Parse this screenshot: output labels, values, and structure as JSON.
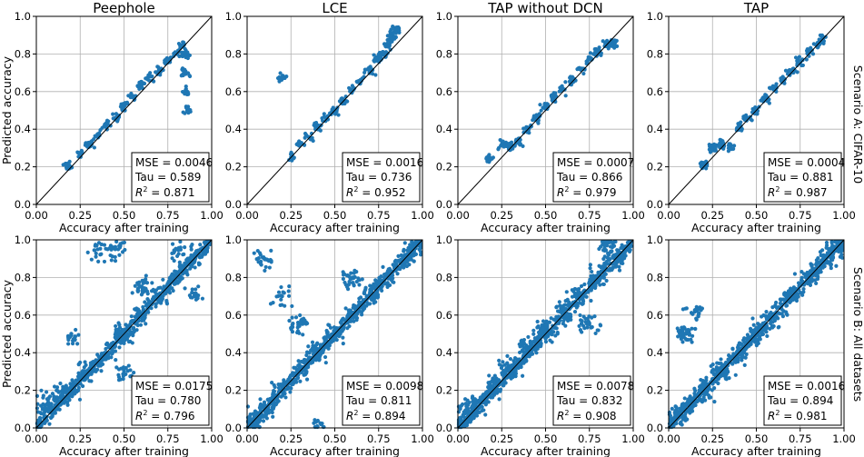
{
  "figure": {
    "row_labels": [
      "Scenario A: CIFAR-10",
      "Scenario B: All datasets"
    ]
  },
  "chart_data": [
    {
      "type": "scatter",
      "title": "Peephole",
      "xlabel": "Accuracy after training",
      "ylabel": "Predicted accuracy",
      "xlim": [
        0,
        1
      ],
      "ylim": [
        0,
        1
      ],
      "xticks": [
        "0.00",
        "0.25",
        "0.50",
        "0.75",
        "1.00"
      ],
      "yticks": [
        "0.0",
        "0.2",
        "0.4",
        "0.6",
        "0.8",
        "1.0"
      ],
      "grid": true,
      "legend": "bottom-right",
      "diagonal": true,
      "color": "#1f77b4",
      "mse": "MSE = 0.0046",
      "tau": "Tau = 0.589",
      "r2": "0.871",
      "r2_prefix": "R",
      "points": [
        [
          0.18,
          0.2
        ],
        [
          0.25,
          0.27
        ],
        [
          0.3,
          0.32
        ],
        [
          0.35,
          0.37
        ],
        [
          0.4,
          0.42
        ],
        [
          0.45,
          0.46
        ],
        [
          0.5,
          0.52
        ],
        [
          0.55,
          0.57
        ],
        [
          0.6,
          0.63
        ],
        [
          0.65,
          0.68
        ],
        [
          0.7,
          0.72
        ],
        [
          0.75,
          0.76
        ],
        [
          0.8,
          0.8
        ],
        [
          0.83,
          0.84
        ],
        [
          0.85,
          0.7
        ],
        [
          0.86,
          0.6
        ],
        [
          0.86,
          0.5
        ],
        [
          0.85,
          0.79
        ]
      ]
    },
    {
      "type": "scatter",
      "title": "LCE",
      "xlabel": "Accuracy after training",
      "ylabel": "",
      "xlim": [
        0,
        1
      ],
      "ylim": [
        0,
        1
      ],
      "xticks": [
        "0.00",
        "0.25",
        "0.50",
        "0.75",
        "1.00"
      ],
      "yticks": [
        "0.0",
        "0.2",
        "0.4",
        "0.6",
        "0.8",
        "1.0"
      ],
      "grid": true,
      "legend": "bottom-right",
      "diagonal": true,
      "color": "#1f77b4",
      "mse": "MSE = 0.0016",
      "tau": "Tau = 0.736",
      "r2": "0.952",
      "r2_prefix": "R",
      "points": [
        [
          0.2,
          0.67
        ],
        [
          0.25,
          0.25
        ],
        [
          0.3,
          0.32
        ],
        [
          0.35,
          0.36
        ],
        [
          0.4,
          0.41
        ],
        [
          0.45,
          0.46
        ],
        [
          0.5,
          0.5
        ],
        [
          0.55,
          0.55
        ],
        [
          0.6,
          0.61
        ],
        [
          0.65,
          0.66
        ],
        [
          0.7,
          0.71
        ],
        [
          0.75,
          0.78
        ],
        [
          0.8,
          0.85
        ],
        [
          0.83,
          0.9
        ],
        [
          0.85,
          0.93
        ],
        [
          0.82,
          0.88
        ],
        [
          0.78,
          0.8
        ]
      ]
    },
    {
      "type": "scatter",
      "title": "TAP without DCN",
      "xlabel": "Accuracy after training",
      "ylabel": "",
      "xlim": [
        0,
        1
      ],
      "ylim": [
        0,
        1
      ],
      "xticks": [
        "0.00",
        "0.25",
        "0.50",
        "0.75",
        "1.00"
      ],
      "yticks": [
        "0.0",
        "0.2",
        "0.4",
        "0.6",
        "0.8",
        "1.0"
      ],
      "grid": true,
      "legend": "bottom-right",
      "diagonal": true,
      "color": "#1f77b4",
      "mse": "MSE = 0.0007",
      "tau": "Tau = 0.866",
      "r2": "0.979",
      "r2_prefix": "R",
      "points": [
        [
          0.18,
          0.24
        ],
        [
          0.25,
          0.32
        ],
        [
          0.3,
          0.31
        ],
        [
          0.35,
          0.33
        ],
        [
          0.4,
          0.4
        ],
        [
          0.45,
          0.46
        ],
        [
          0.5,
          0.52
        ],
        [
          0.55,
          0.57
        ],
        [
          0.6,
          0.61
        ],
        [
          0.65,
          0.66
        ],
        [
          0.7,
          0.72
        ],
        [
          0.75,
          0.77
        ],
        [
          0.8,
          0.81
        ],
        [
          0.85,
          0.85
        ],
        [
          0.88,
          0.86
        ]
      ]
    },
    {
      "type": "scatter",
      "title": "TAP",
      "xlabel": "Accuracy after training",
      "ylabel": "",
      "xlim": [
        0,
        1
      ],
      "ylim": [
        0,
        1
      ],
      "xticks": [
        "0.00",
        "0.25",
        "0.50",
        "0.75",
        "1.00"
      ],
      "yticks": [
        "0.0",
        "0.2",
        "0.4",
        "0.6",
        "0.8",
        "1.0"
      ],
      "grid": true,
      "legend": "bottom-right",
      "diagonal": true,
      "color": "#1f77b4",
      "mse": "MSE = 0.0004",
      "tau": "Tau = 0.881",
      "r2": "0.987",
      "r2_prefix": "R",
      "points": [
        [
          0.2,
          0.21
        ],
        [
          0.25,
          0.3
        ],
        [
          0.3,
          0.32
        ],
        [
          0.35,
          0.31
        ],
        [
          0.4,
          0.41
        ],
        [
          0.45,
          0.46
        ],
        [
          0.5,
          0.5
        ],
        [
          0.55,
          0.56
        ],
        [
          0.6,
          0.61
        ],
        [
          0.65,
          0.66
        ],
        [
          0.7,
          0.71
        ],
        [
          0.75,
          0.76
        ],
        [
          0.8,
          0.81
        ],
        [
          0.85,
          0.85
        ],
        [
          0.88,
          0.88
        ]
      ]
    },
    {
      "type": "scatter",
      "title": "",
      "xlabel": "Accuracy after training",
      "ylabel": "Predicted accuracy",
      "xlim": [
        0,
        1
      ],
      "ylim": [
        0,
        1
      ],
      "xticks": [
        "0.00",
        "0.25",
        "0.50",
        "0.75",
        "1.00"
      ],
      "yticks": [
        "0.0",
        "0.2",
        "0.4",
        "0.6",
        "0.8",
        "1.0"
      ],
      "grid": true,
      "legend": "bottom-right",
      "diagonal": true,
      "color": "#1f77b4",
      "mse": "MSE = 0.0175",
      "tau": "Tau = 0.780",
      "r2": "0.796",
      "r2_prefix": "R",
      "points": [
        [
          0.05,
          0.12
        ],
        [
          0.1,
          0.15
        ],
        [
          0.15,
          0.18
        ],
        [
          0.2,
          0.2
        ],
        [
          0.3,
          0.3
        ],
        [
          0.4,
          0.4
        ],
        [
          0.5,
          0.5
        ],
        [
          0.6,
          0.6
        ],
        [
          0.7,
          0.7
        ],
        [
          0.8,
          0.8
        ],
        [
          0.9,
          0.9
        ],
        [
          0.35,
          0.95
        ],
        [
          0.45,
          0.95
        ],
        [
          0.8,
          0.95
        ],
        [
          0.9,
          0.7
        ],
        [
          0.6,
          0.75
        ],
        [
          0.2,
          0.5
        ],
        [
          0.5,
          0.3
        ]
      ]
    },
    {
      "type": "scatter",
      "title": "",
      "xlabel": "Accuracy after training",
      "ylabel": "",
      "xlim": [
        0,
        1
      ],
      "ylim": [
        0,
        1
      ],
      "xticks": [
        "0.00",
        "0.25",
        "0.50",
        "0.75",
        "1.00"
      ],
      "yticks": [
        "0.0",
        "0.2",
        "0.4",
        "0.6",
        "0.8",
        "1.0"
      ],
      "grid": true,
      "legend": "bottom-right",
      "diagonal": true,
      "color": "#1f77b4",
      "mse": "MSE = 0.0098",
      "tau": "Tau = 0.811",
      "r2": "0.894",
      "r2_prefix": "R",
      "points": [
        [
          0.05,
          0.05
        ],
        [
          0.1,
          0.1
        ],
        [
          0.2,
          0.2
        ],
        [
          0.3,
          0.3
        ],
        [
          0.4,
          0.4
        ],
        [
          0.5,
          0.5
        ],
        [
          0.6,
          0.6
        ],
        [
          0.7,
          0.7
        ],
        [
          0.8,
          0.8
        ],
        [
          0.9,
          0.9
        ],
        [
          0.97,
          0.97
        ],
        [
          0.1,
          0.9
        ],
        [
          0.2,
          0.7
        ],
        [
          0.3,
          0.55
        ],
        [
          0.4,
          0.01
        ],
        [
          0.6,
          0.8
        ]
      ]
    },
    {
      "type": "scatter",
      "title": "",
      "xlabel": "Accuracy after training",
      "ylabel": "",
      "xlim": [
        0,
        1
      ],
      "ylim": [
        0,
        1
      ],
      "xticks": [
        "0.00",
        "0.25",
        "0.50",
        "0.75",
        "1.00"
      ],
      "yticks": [
        "0.0",
        "0.2",
        "0.4",
        "0.6",
        "0.8",
        "1.0"
      ],
      "grid": true,
      "legend": "bottom-right",
      "diagonal": true,
      "color": "#1f77b4",
      "mse": "MSE = 0.0078",
      "tau": "Tau = 0.832",
      "r2": "0.908",
      "r2_prefix": "R",
      "points": [
        [
          0.05,
          0.08
        ],
        [
          0.1,
          0.12
        ],
        [
          0.2,
          0.22
        ],
        [
          0.3,
          0.33
        ],
        [
          0.4,
          0.43
        ],
        [
          0.5,
          0.52
        ],
        [
          0.6,
          0.62
        ],
        [
          0.7,
          0.7
        ],
        [
          0.8,
          0.8
        ],
        [
          0.9,
          0.9
        ],
        [
          0.85,
          0.97
        ],
        [
          0.75,
          0.55
        ]
      ]
    },
    {
      "type": "scatter",
      "title": "",
      "xlabel": "Accuracy after training",
      "ylabel": "",
      "xlim": [
        0,
        1
      ],
      "ylim": [
        0,
        1
      ],
      "xticks": [
        "0.00",
        "0.25",
        "0.50",
        "0.75",
        "1.00"
      ],
      "yticks": [
        "0.0",
        "0.2",
        "0.4",
        "0.6",
        "0.8",
        "1.0"
      ],
      "grid": true,
      "legend": "bottom-right",
      "diagonal": true,
      "color": "#1f77b4",
      "mse": "MSE = 0.0016",
      "tau": "Tau = 0.894",
      "r2": "0.981",
      "r2_prefix": "R",
      "points": [
        [
          0.05,
          0.06
        ],
        [
          0.1,
          0.1
        ],
        [
          0.2,
          0.2
        ],
        [
          0.3,
          0.3
        ],
        [
          0.4,
          0.4
        ],
        [
          0.5,
          0.5
        ],
        [
          0.6,
          0.6
        ],
        [
          0.7,
          0.7
        ],
        [
          0.8,
          0.8
        ],
        [
          0.9,
          0.9
        ],
        [
          0.97,
          0.97
        ],
        [
          0.1,
          0.5
        ],
        [
          0.15,
          0.62
        ]
      ]
    }
  ]
}
